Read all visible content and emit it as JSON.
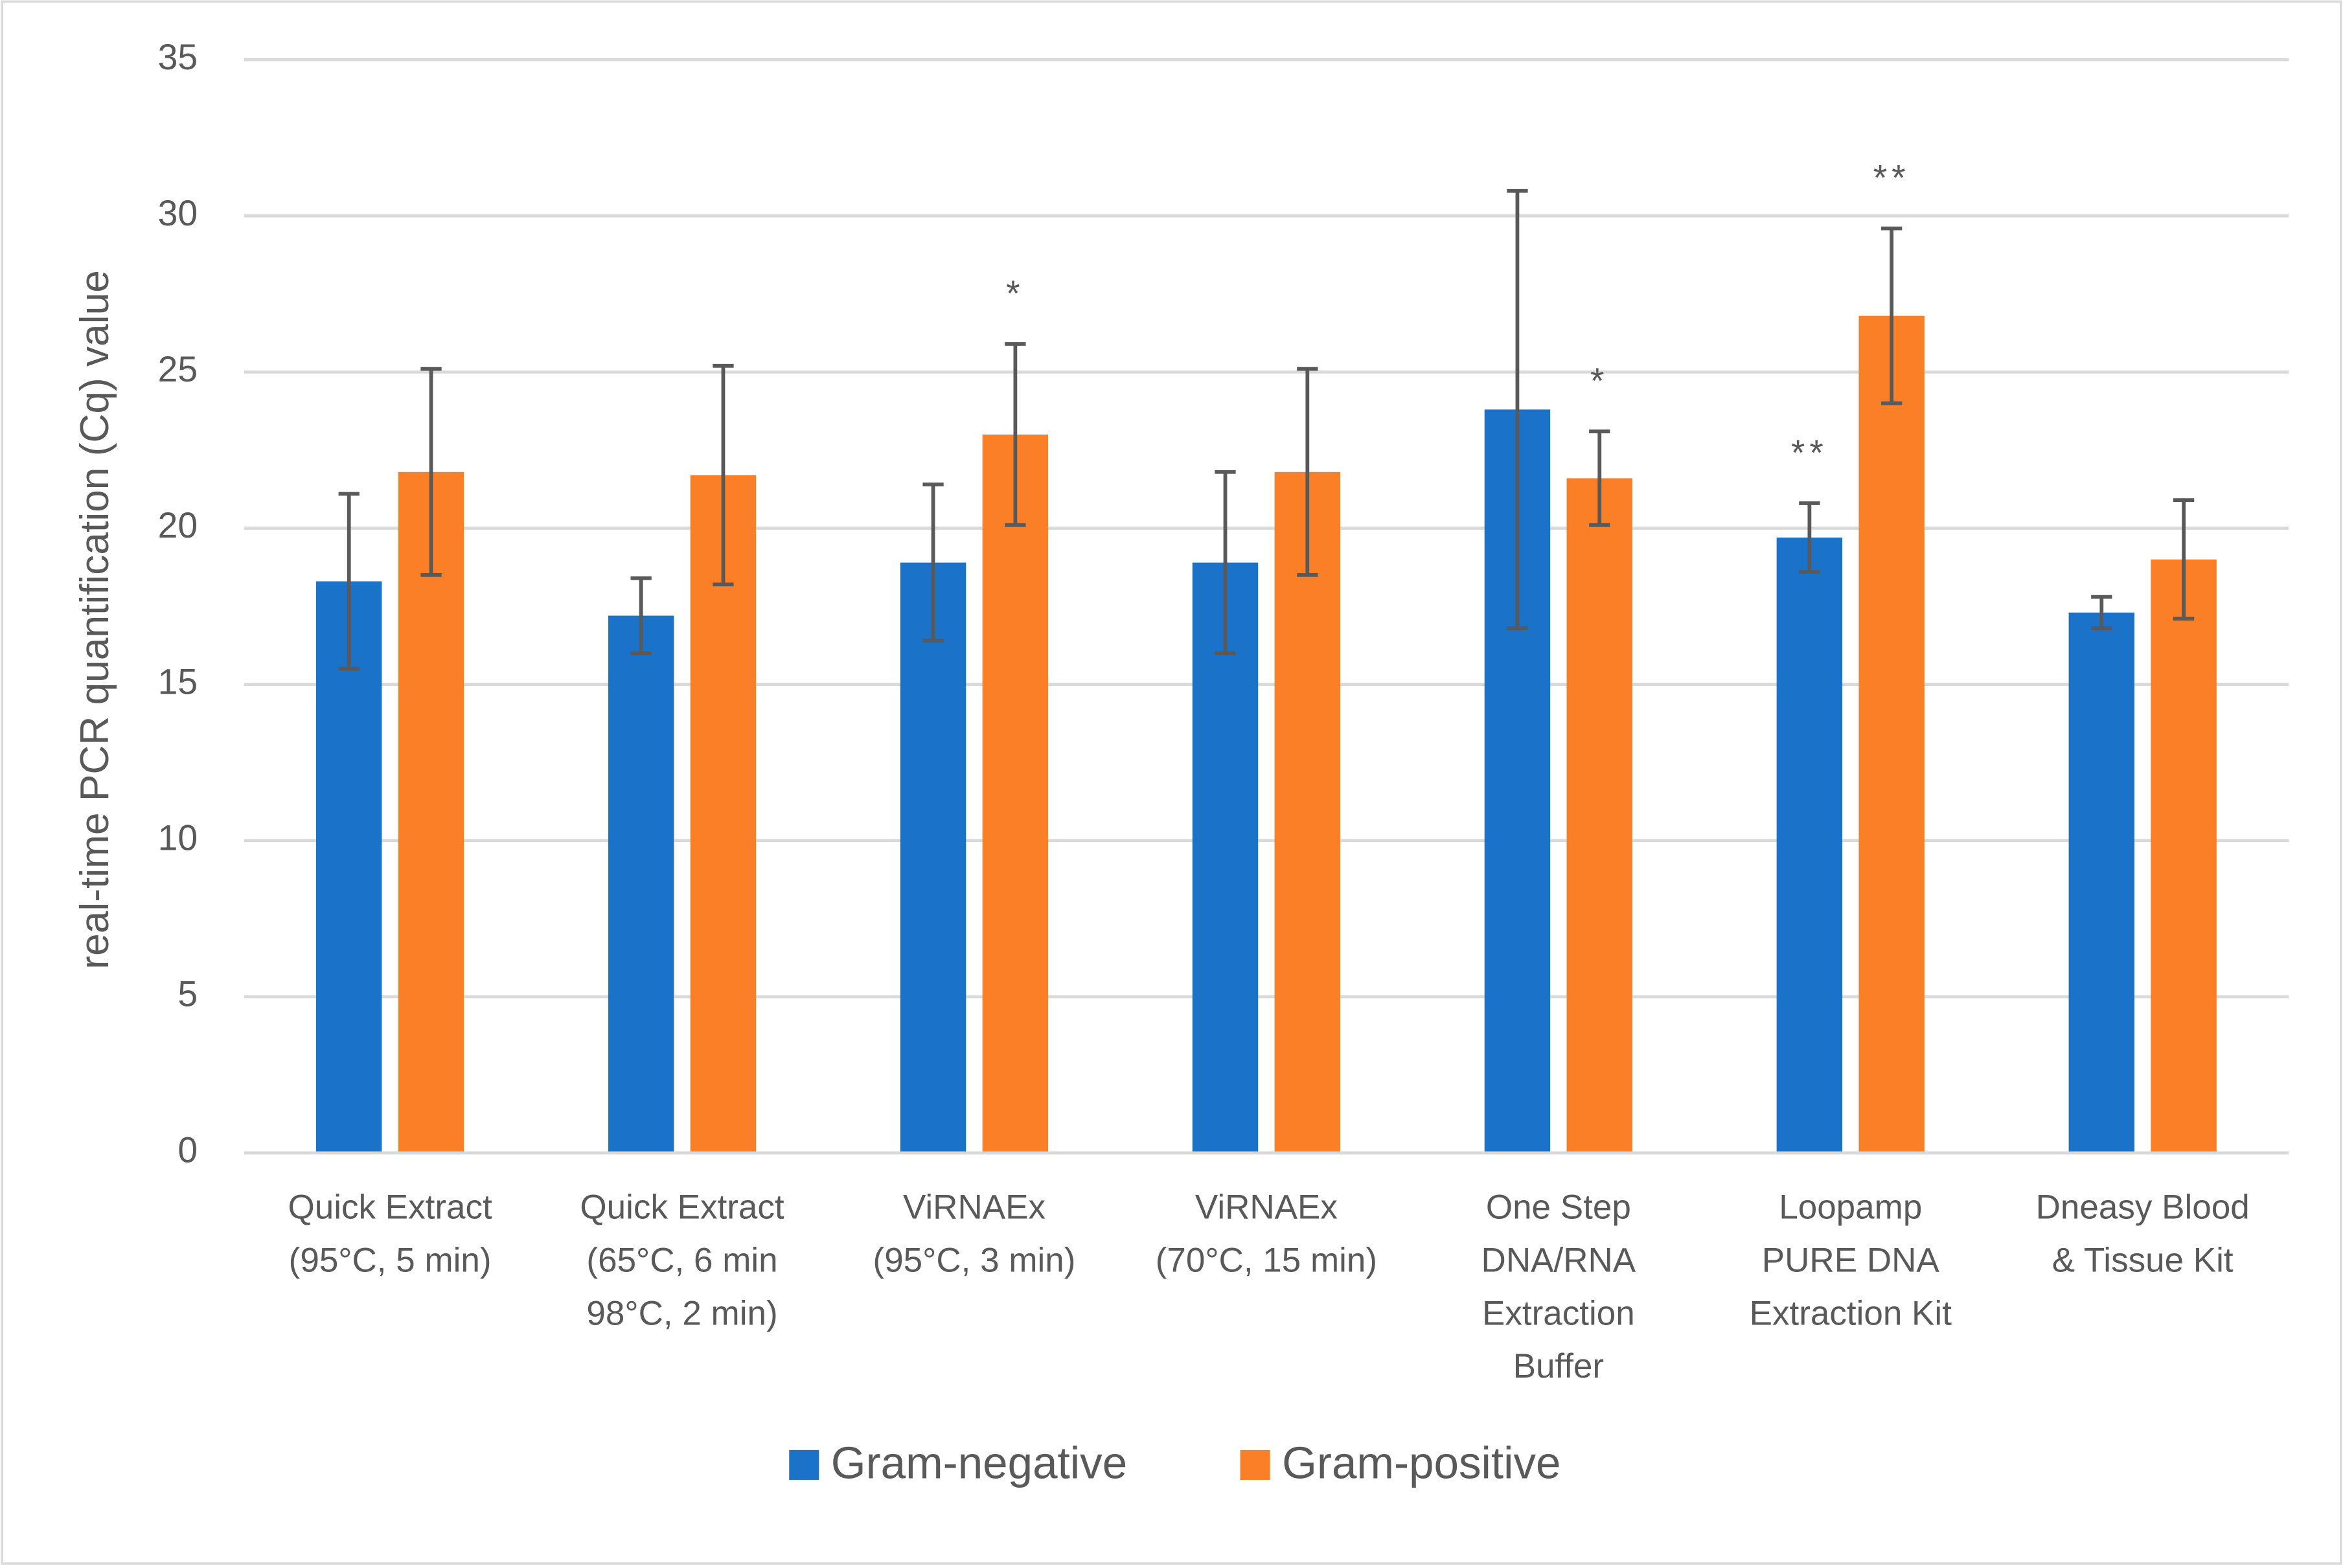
{
  "chart_data": {
    "type": "bar",
    "y_label": "real-time PCR quantification (Cq) value",
    "categories": [
      [
        "Quick Extract",
        "(95°C, 5 min)"
      ],
      [
        "Quick Extract",
        "(65°C, 6 min",
        "98°C, 2 min)"
      ],
      [
        "ViRNAEx",
        "(95°C, 3 min)"
      ],
      [
        "ViRNAEx",
        "(70°C, 15 min)"
      ],
      [
        "One Step",
        "DNA/RNA",
        "Extraction",
        "Buffer"
      ],
      [
        "Loopamp",
        "PURE DNA",
        "Extraction Kit"
      ],
      [
        "Dneasy Blood",
        "& Tissue Kit"
      ]
    ],
    "series": [
      {
        "name": "Gram-negative",
        "color": "#1b72c9",
        "values": [
          18.3,
          17.2,
          18.9,
          18.9,
          23.8,
          19.7,
          17.3
        ],
        "errors": [
          2.8,
          1.2,
          2.5,
          2.9,
          7.0,
          1.1,
          0.5
        ],
        "annotations": [
          null,
          null,
          null,
          null,
          null,
          "**",
          null
        ]
      },
      {
        "name": "Gram-positive",
        "color": "#fb7f26",
        "values": [
          21.8,
          21.7,
          23.0,
          21.8,
          21.6,
          26.8,
          19.0
        ],
        "errors": [
          3.3,
          3.5,
          2.9,
          3.3,
          1.5,
          2.8,
          1.9
        ],
        "annotations": [
          null,
          null,
          "*",
          null,
          "*",
          "**",
          null
        ]
      }
    ],
    "ylim": [
      0,
      35
    ],
    "yticks": [
      0,
      5,
      10,
      15,
      20,
      25,
      30,
      35
    ],
    "grid": true,
    "legend": "bottom"
  }
}
